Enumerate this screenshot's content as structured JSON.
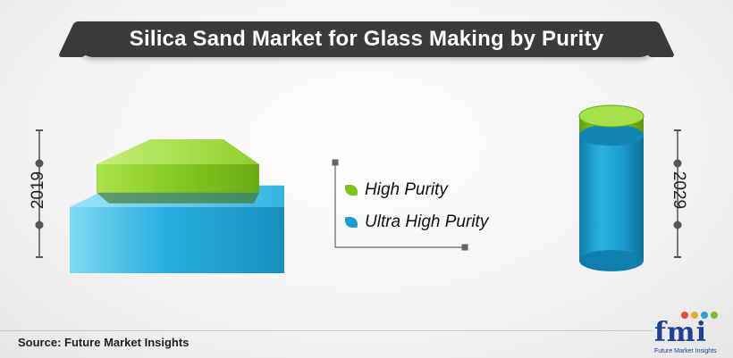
{
  "title": "Silica Sand Market for Glass Making by Purity",
  "chart_data": {
    "type": "bar",
    "title": "Silica Sand Market for Glass Making by Purity",
    "categories": [
      "2019",
      "2029"
    ],
    "series": [
      {
        "name": "High Purity",
        "values": [
          30,
          6
        ]
      },
      {
        "name": "Ultra High Purity",
        "values": [
          70,
          94
        ]
      }
    ]
  },
  "legend": {
    "items": [
      {
        "label": "High Purity",
        "color": "#7fc31c"
      },
      {
        "label": "Ultra High Purity",
        "color": "#1a9fd0"
      }
    ]
  },
  "colors": {
    "high_purity": "#7fc31c",
    "ultra_high_purity": "#1a9fd0",
    "title_bar": "#3b3b3b"
  },
  "footer": {
    "source": "Source: Future Market Insights"
  },
  "logo": {
    "text": "fmi",
    "subtitle": "Future Market Insights"
  }
}
